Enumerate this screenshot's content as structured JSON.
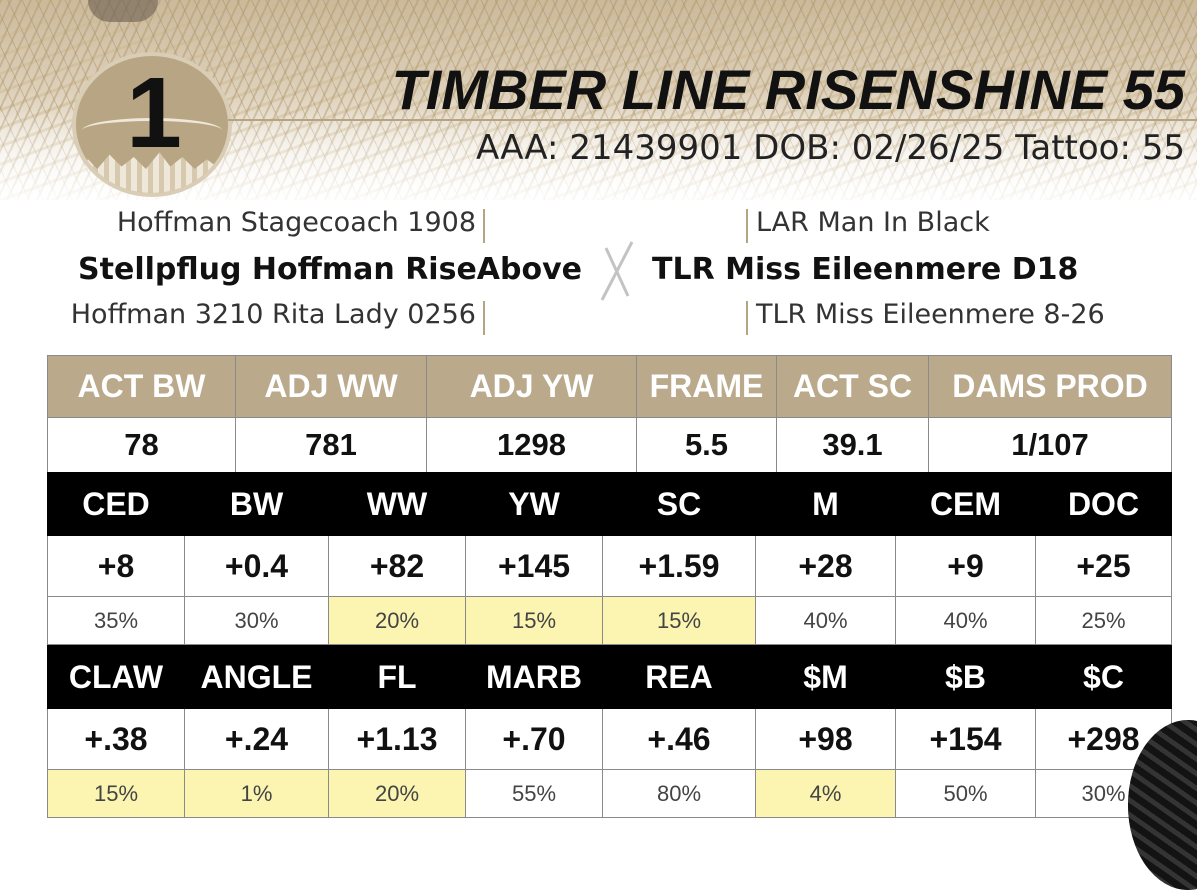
{
  "lot_number": "1",
  "animal_name": "TIMBER LINE RISENSHINE 55",
  "id_line": "AAA: 21439901   DOB: 02/26/25  Tattoo: 55",
  "pedigree": {
    "sire_sire": "Hoffman Stagecoach 1908",
    "sire": "Stellpflug Hoffman RiseAbove",
    "sire_dam": "Hoffman 3210 Rita Lady 0256",
    "dam_sire": "LAR Man In Black",
    "dam": "TLR Miss Eileenmere D18",
    "dam_dam": "TLR Miss Eileenmere 8-26"
  },
  "performance": {
    "headers": [
      "ACT BW",
      "ADJ WW",
      "ADJ YW",
      "FRAME",
      "ACT SC",
      "DAMS PROD"
    ],
    "values": [
      "78",
      "781",
      "1298",
      "5.5",
      "39.1",
      "1/107"
    ]
  },
  "epd_row1": {
    "headers": [
      "CED",
      "BW",
      "WW",
      "YW",
      "SC",
      "M",
      "CEM",
      "DOC"
    ],
    "values": [
      "+8",
      "+0.4",
      "+82",
      "+145",
      "+1.59",
      "+28",
      "+9",
      "+25"
    ],
    "percentiles": [
      "35%",
      "30%",
      "20%",
      "15%",
      "15%",
      "40%",
      "40%",
      "25%"
    ],
    "highlighted": [
      false,
      false,
      true,
      true,
      true,
      false,
      false,
      false
    ]
  },
  "epd_row2": {
    "headers": [
      "CLAW",
      "ANGLE",
      "FL",
      "MARB",
      "REA",
      "$M",
      "$B",
      "$C"
    ],
    "values": [
      "+.38",
      "+.24",
      "+1.13",
      "+.70",
      "+.46",
      "+98",
      "+154",
      "+298"
    ],
    "percentiles": [
      "15%",
      "1%",
      "20%",
      "55%",
      "80%",
      "4%",
      "50%",
      "30%"
    ],
    "highlighted": [
      true,
      true,
      true,
      false,
      false,
      true,
      false,
      false
    ]
  },
  "colors": {
    "tan": "#baa98b",
    "black": "#000000",
    "highlight": "#fbf5b1"
  }
}
